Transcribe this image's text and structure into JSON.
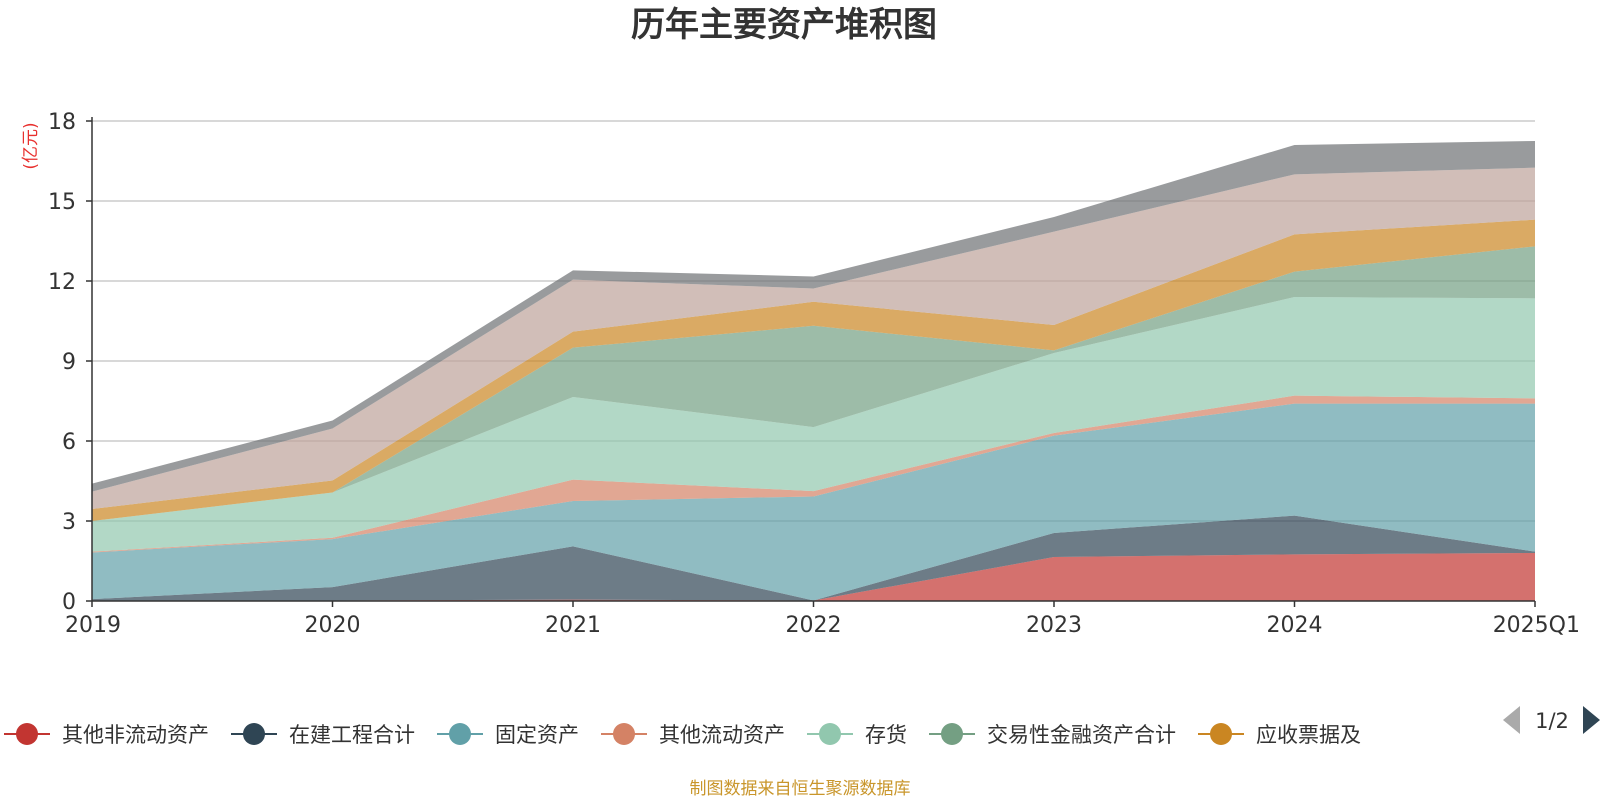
{
  "chart_data": {
    "type": "area",
    "stacked": true,
    "title": "历年主要资产堆积图",
    "unit_label": "(亿元)",
    "categories": [
      "2019",
      "2020",
      "2021",
      "2022",
      "2023",
      "2024",
      "2025Q1"
    ],
    "ylim": [
      0,
      18
    ],
    "yticks": [
      "0",
      "3",
      "6",
      "9",
      "12",
      "15",
      "18"
    ],
    "grid": true,
    "series": [
      {
        "name": "其他非流动资产",
        "color": "#c23531",
        "values": [
          0.02,
          0.02,
          0.05,
          0.02,
          1.65,
          1.75,
          1.8
        ]
      },
      {
        "name": "在建工程合计",
        "color": "#2f4554",
        "values": [
          0.05,
          0.5,
          2.0,
          0.0,
          0.9,
          1.45,
          0.05
        ]
      },
      {
        "name": "固定资产",
        "color": "#61a0a8",
        "values": [
          1.75,
          1.8,
          1.7,
          3.9,
          3.65,
          4.2,
          5.55
        ]
      },
      {
        "name": "其他流动资产",
        "color": "#d48265",
        "values": [
          0.03,
          0.05,
          0.8,
          0.2,
          0.1,
          0.3,
          0.2
        ]
      },
      {
        "name": "存货",
        "color": "#91c7ae",
        "values": [
          1.15,
          1.7,
          3.1,
          2.4,
          3.0,
          3.7,
          3.75
        ]
      },
      {
        "name": "交易性金融资产合计",
        "color": "#749f83",
        "values": [
          0.0,
          0.0,
          1.85,
          3.8,
          0.1,
          0.95,
          1.95
        ]
      },
      {
        "name": "应收票据及",
        "color": "#ca8622",
        "values": [
          0.45,
          0.45,
          0.6,
          0.9,
          0.95,
          1.4,
          1.0
        ]
      },
      {
        "name": "",
        "color": "#bda29a",
        "values": [
          0.65,
          1.95,
          1.95,
          0.5,
          3.5,
          2.25,
          1.95
        ]
      },
      {
        "name": "",
        "color": "#6e7074",
        "values": [
          0.3,
          0.3,
          0.35,
          0.45,
          0.55,
          1.1,
          1.0
        ]
      }
    ],
    "legend": {
      "position": "bottom",
      "visible": [
        "其他非流动资产",
        "在建工程合计",
        "固定资产",
        "其他流动资产",
        "存货",
        "交易性金融资产合计",
        "应收票据及"
      ],
      "page_label": "1/2"
    }
  },
  "footer": {
    "source_text": "制图数据来自恒生聚源数据库"
  }
}
